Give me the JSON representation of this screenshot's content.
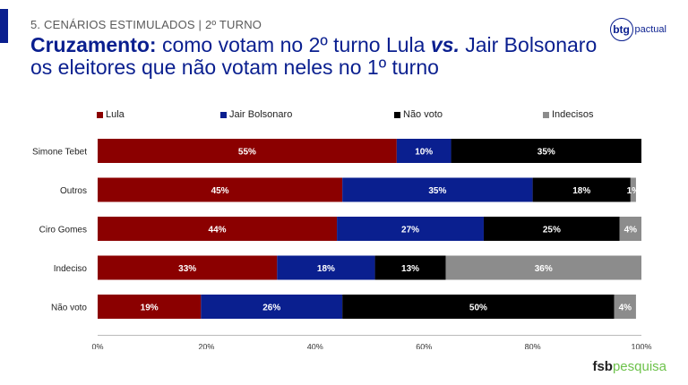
{
  "header": {
    "section": "5. CENÁRIOS ESTIMULADOS | 2º TURNO",
    "title_bold": "Cruzamento:",
    "title_part1": " como votam no 2º turno Lula ",
    "title_vs": "vs.",
    "title_part2": " Jair Bolsonaro os eleitores que não votam neles no 1º turno"
  },
  "logo": {
    "mark": "btg",
    "text": "pactual"
  },
  "footer": {
    "brand": "fsb",
    "brand_sub": "pesquisa"
  },
  "chart_data": {
    "type": "bar",
    "orientation": "horizontal",
    "stacked": true,
    "categories": [
      "Simone Tebet",
      "Outros",
      "Ciro Gomes",
      "Indeciso",
      "Não voto"
    ],
    "series": [
      {
        "name": "Lula",
        "color": "#8b0000",
        "values": [
          55,
          45,
          44,
          33,
          19
        ]
      },
      {
        "name": "Jair Bolsonaro",
        "color": "#0a1f8f",
        "values": [
          10,
          35,
          27,
          18,
          26
        ]
      },
      {
        "name": "Não voto",
        "color": "#000000",
        "values": [
          35,
          18,
          25,
          13,
          50
        ]
      },
      {
        "name": "Indecisos",
        "color": "#8c8c8c",
        "values": [
          0,
          1,
          4,
          36,
          4
        ]
      }
    ],
    "data_labels": [
      [
        "55%",
        "10%",
        "35%",
        ""
      ],
      [
        "45%",
        "35%",
        "18%",
        "1%"
      ],
      [
        "44%",
        "27%",
        "25%",
        "4%"
      ],
      [
        "33%",
        "18%",
        "13%",
        "36%"
      ],
      [
        "19%",
        "26%",
        "50%",
        "4%"
      ]
    ],
    "x_ticks": [
      "0%",
      "20%",
      "40%",
      "60%",
      "80%",
      "100%"
    ],
    "xlim": [
      0,
      100
    ],
    "legend_position": "top",
    "grid": false
  }
}
